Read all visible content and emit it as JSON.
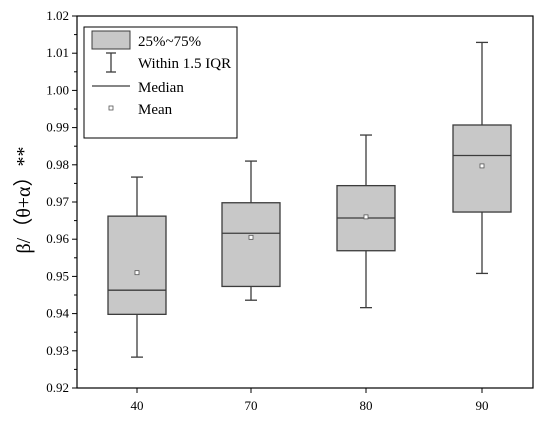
{
  "chart_data": {
    "type": "box",
    "ylabel": "β/（θ+α）**",
    "ylim": [
      0.92,
      1.02
    ],
    "yticks": [
      "0.92",
      "0.93",
      "0.94",
      "0.95",
      "0.96",
      "0.97",
      "0.98",
      "0.99",
      "1.00",
      "1.01",
      "1.02"
    ],
    "categories": [
      "40",
      "70",
      "80",
      "90"
    ],
    "boxes": [
      {
        "category": "40",
        "whisker_low": 0.9283,
        "q1": 0.9398,
        "median": 0.9463,
        "q3": 0.9662,
        "whisker_high": 0.9767,
        "mean": 0.951
      },
      {
        "category": "70",
        "whisker_low": 0.9436,
        "q1": 0.9473,
        "median": 0.9616,
        "q3": 0.9698,
        "whisker_high": 0.981,
        "mean": 0.9605
      },
      {
        "category": "80",
        "whisker_low": 0.9416,
        "q1": 0.9569,
        "median": 0.9657,
        "q3": 0.9744,
        "whisker_high": 0.988,
        "mean": 0.966
      },
      {
        "category": "90",
        "whisker_low": 0.9508,
        "q1": 0.9673,
        "median": 0.9825,
        "q3": 0.9907,
        "whisker_high": 1.0129,
        "mean": 0.9797
      }
    ],
    "legend": {
      "position": "top-left",
      "items": [
        "25%~75%",
        "Within 1.5 IQR",
        "Median",
        "Mean"
      ]
    },
    "colors": {
      "box_fill": "#c8c8c8",
      "stroke": "#3c3c3c"
    },
    "grid": false
  }
}
